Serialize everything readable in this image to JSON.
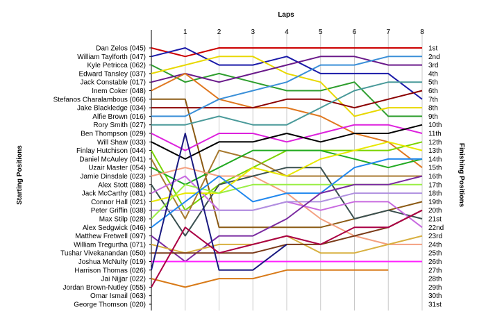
{
  "chart_data": {
    "type": "line",
    "title": "",
    "xlabel": "Laps",
    "ylabel_left": "Starting Positions",
    "ylabel_right": "Finishing Positions",
    "x": [
      "",
      "1",
      "2",
      "3",
      "4",
      "5",
      "6",
      "7",
      "8"
    ],
    "drivers": [
      "Dan Zelos (045)",
      "William Taylforth (047)",
      "Kyle Petricca (062)",
      "Edward Tansley (037)",
      "Jack Constable (017)",
      "Inem Coker (048)",
      "Stefanos Charalambous (066)",
      "Jake Blackledge (034)",
      "Alfie Brown (016)",
      "Rory Smith (027)",
      "Ben Thompson (029)",
      "Will Shaw (033)",
      "Finlay Hutchison (044)",
      "Daniel McAuley (041)",
      "Uzair Master (054)",
      "Jamie Dinsdale (023)",
      "Alex Stott (088)",
      "Jack McCarthy (081)",
      "Connor Hall (021)",
      "Peter Griffin (038)",
      "Max Stilp (028)",
      "Alex Sedgwick (046)",
      "Matthew Fretwell (097)",
      "William Tregurtha (071)",
      "Tushar Vivekanandan (050)",
      "Joshua McNulty (019)",
      "Harrison Thomas (026)",
      "Jai Nijjar (022)",
      "Jordan Brown-Nutley (055)",
      "Omar Ismail (063)",
      "George Thomson (020)"
    ],
    "finishing_labels": [
      "1st",
      "2nd",
      "3rd",
      "4th",
      "5th",
      "6th",
      "7th",
      "8th",
      "9th",
      "10th",
      "11th",
      "12th",
      "13th",
      "14th",
      "15th",
      "16th",
      "17th",
      "18th",
      "19th",
      "20th",
      "21st",
      "22nd",
      "23rd",
      "24th",
      "25th",
      "26th",
      "27th",
      "28th",
      "29th",
      "30th",
      "31st"
    ],
    "series": [
      {
        "color": "#cc0000",
        "values": [
          1,
          2,
          1,
          1,
          1,
          1,
          1,
          1,
          1
        ]
      },
      {
        "color": "#1a1aa8",
        "values": [
          2,
          1,
          3,
          3,
          2,
          4,
          4,
          4,
          7
        ]
      },
      {
        "color": "#2e9e2e",
        "values": [
          3,
          5,
          4,
          5,
          6,
          6,
          5,
          9,
          9
        ]
      },
      {
        "color": "#e8d800",
        "values": [
          4,
          3,
          2,
          2,
          4,
          5,
          9,
          8,
          8
        ]
      },
      {
        "color": "#6a1a8a",
        "values": [
          5,
          4,
          5,
          4,
          3,
          2,
          2,
          3,
          3
        ]
      },
      {
        "color": "#e07820",
        "values": [
          6,
          4,
          7,
          8,
          8,
          9,
          11,
          12,
          15
        ]
      },
      {
        "color": "#8b5a14",
        "values": [
          7,
          7,
          22,
          22,
          22,
          22,
          21,
          20,
          19
        ]
      },
      {
        "color": "#8b0000",
        "values": [
          8,
          8,
          8,
          8,
          7,
          7,
          8,
          7,
          6
        ]
      },
      {
        "color": "#3a8fd8",
        "values": [
          9,
          9,
          7,
          6,
          5,
          3,
          3,
          2,
          2
        ]
      },
      {
        "color": "#4a9a9a",
        "values": [
          10,
          10,
          9,
          10,
          10,
          8,
          6,
          5,
          5
        ]
      },
      {
        "color": "#dd22dd",
        "values": [
          11,
          13,
          11,
          11,
          12,
          11,
          10,
          10,
          11
        ]
      },
      {
        "color": "#000000",
        "values": [
          12,
          14,
          12,
          12,
          11,
          12,
          11,
          11,
          10
        ]
      },
      {
        "color": "#7ad400",
        "values": [
          13,
          20,
          17,
          15,
          13,
          13,
          13,
          13,
          12
        ]
      },
      {
        "color": "#a87a30",
        "values": [
          14,
          21,
          13,
          14,
          16,
          16,
          16,
          16,
          16
        ]
      },
      {
        "color": "#22aa22",
        "values": [
          15,
          17,
          15,
          13,
          13,
          13,
          14,
          15,
          14
        ]
      },
      {
        "color": "#f4a080",
        "values": [
          16,
          15,
          16,
          16,
          18,
          21,
          23,
          24,
          24
        ]
      },
      {
        "color": "#3a5050",
        "values": [
          17,
          23,
          17,
          16,
          15,
          15,
          21,
          20,
          21
        ]
      },
      {
        "color": "#c86ae0",
        "values": [
          18,
          16,
          20,
          20,
          19,
          20,
          19,
          19,
          22
        ]
      },
      {
        "color": "#e8e800",
        "values": [
          19,
          18,
          18,
          15,
          16,
          14,
          13,
          12,
          13
        ]
      },
      {
        "color": "#b090e0",
        "values": [
          20,
          20,
          20,
          20,
          19,
          19,
          18,
          18,
          18
        ]
      },
      {
        "color": "#99ee44",
        "values": [
          21,
          17,
          18,
          17,
          17,
          17,
          17,
          17,
          17
        ]
      },
      {
        "color": "#2288ee",
        "values": [
          22,
          19,
          16,
          19,
          18,
          18,
          15,
          14,
          14
        ]
      },
      {
        "color": "#7a2aa0",
        "values": [
          23,
          26,
          23,
          23,
          21,
          18,
          17,
          17,
          16
        ]
      },
      {
        "color": "#d8b040",
        "values": [
          24,
          25,
          24,
          24,
          23,
          25,
          25,
          24,
          23
        ]
      },
      {
        "color": "#7a3a18",
        "values": [
          25,
          25,
          25,
          25,
          24,
          24,
          23,
          22,
          20
        ]
      },
      {
        "color": "#ff22ff",
        "values": [
          26,
          26,
          26,
          26,
          26,
          26,
          26,
          26,
          26
        ]
      },
      {
        "color": "#1a1a80",
        "values": [
          27,
          11,
          27,
          27,
          24,
          null,
          null,
          null,
          null
        ]
      },
      {
        "color": "#d87a18",
        "values": [
          28,
          29,
          28,
          28,
          27,
          27,
          27,
          27,
          null
        ]
      },
      {
        "color": "#aa0044",
        "values": [
          29,
          22,
          25,
          24,
          23,
          24,
          22,
          22,
          20
        ]
      },
      {
        "color": null,
        "values": [
          30,
          null,
          null,
          null,
          null,
          null,
          null,
          null,
          null
        ]
      },
      {
        "color": null,
        "values": [
          31,
          null,
          null,
          null,
          null,
          null,
          null,
          null,
          null
        ]
      }
    ],
    "grid": "vertical"
  }
}
